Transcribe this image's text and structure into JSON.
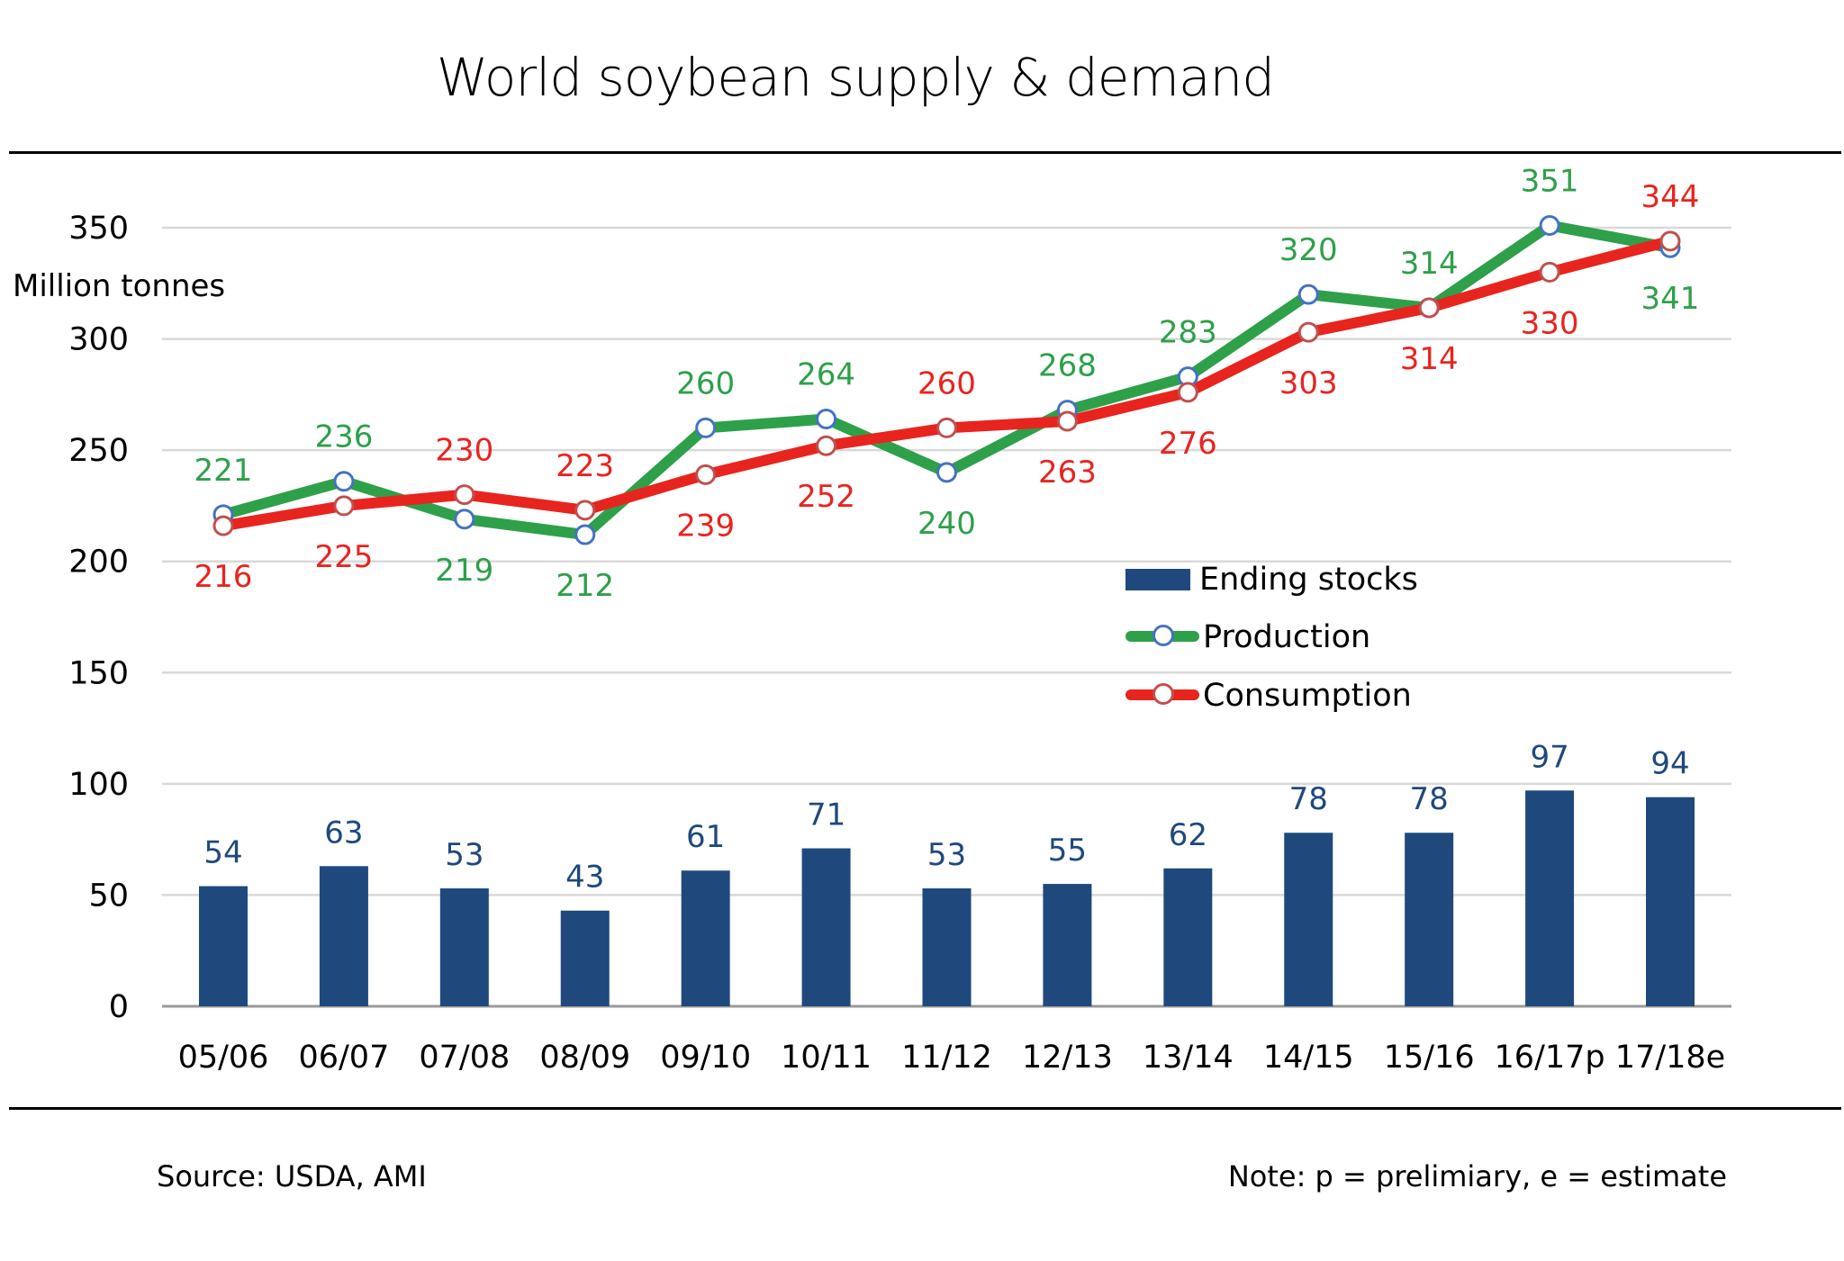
{
  "header": {
    "title": "World soybean supply & demand"
  },
  "footer": {
    "source": "Source: USDA, AMI",
    "note": "Note: p = prelimiary, e = estimate"
  },
  "chart_data": {
    "type": "bar+line",
    "title": "World soybean supply & demand",
    "ylabel": "Million tonnes",
    "xlabel": "",
    "ylim": [
      0,
      350
    ],
    "yticks": [
      0,
      50,
      100,
      150,
      200,
      250,
      300,
      350
    ],
    "grid": true,
    "legend_position": "center-right",
    "categories": [
      "05/06",
      "06/07",
      "07/08",
      "08/09",
      "09/10",
      "10/11",
      "11/12",
      "12/13",
      "13/14",
      "14/15",
      "15/16",
      "16/17p",
      "17/18e"
    ],
    "series": [
      {
        "name": "Ending stocks",
        "kind": "bar",
        "color": "#1f497d",
        "values": [
          54,
          63,
          53,
          43,
          61,
          71,
          53,
          55,
          62,
          78,
          78,
          97,
          94
        ]
      },
      {
        "name": "Production",
        "kind": "line",
        "color": "#2ea04a",
        "label_color": "#2ea04a",
        "marker_edge": "#4472c4",
        "values": [
          221,
          236,
          219,
          212,
          260,
          264,
          240,
          268,
          283,
          320,
          314,
          351,
          341
        ],
        "label_position": [
          "above",
          "above",
          "below",
          "below",
          "above",
          "above",
          "below",
          "above",
          "above",
          "above",
          "above",
          "above",
          "below"
        ]
      },
      {
        "name": "Consumption",
        "kind": "line",
        "color": "#e8241f",
        "label_color": "#e8241f",
        "marker_edge": "#c0504d",
        "values": [
          216,
          225,
          230,
          223,
          239,
          252,
          260,
          263,
          276,
          303,
          314,
          330,
          344
        ],
        "label_position": [
          "below",
          "below",
          "above",
          "above",
          "below",
          "below",
          "above",
          "below",
          "below",
          "below",
          "below",
          "below",
          "above"
        ]
      }
    ]
  }
}
